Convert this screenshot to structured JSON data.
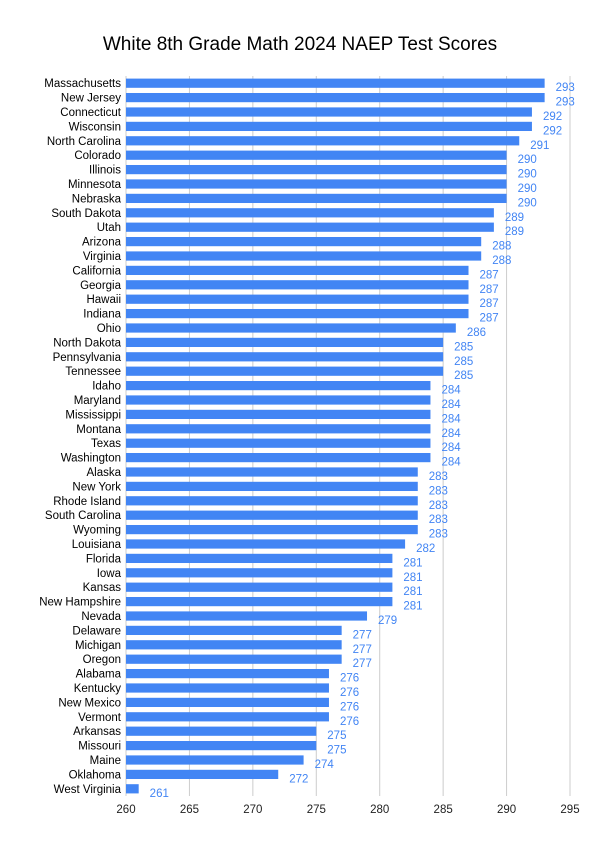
{
  "chart_data": {
    "type": "bar",
    "orientation": "horizontal",
    "title": "White 8th Grade Math 2024 NAEP Test Scores",
    "xlabel": "",
    "ylabel": "",
    "xlim": [
      260,
      295
    ],
    "xticks": [
      260,
      265,
      270,
      275,
      280,
      285,
      290,
      295
    ],
    "grid": "vertical",
    "legend": "none",
    "bar_color": "#4285f4",
    "label_color": "#4285f4",
    "grid_color": "#cccccc",
    "categories": [
      "Massachusetts",
      "New Jersey",
      "Connecticut",
      "Wisconsin",
      "North Carolina",
      "Colorado",
      "Illinois",
      "Minnesota",
      "Nebraska",
      "South Dakota",
      "Utah",
      "Arizona",
      "Virginia",
      "California",
      "Georgia",
      "Hawaii",
      "Indiana",
      "Ohio",
      "North Dakota",
      "Pennsylvania",
      "Tennessee",
      "Idaho",
      "Maryland",
      "Mississippi",
      "Montana",
      "Texas",
      "Washington",
      "Alaska",
      "New York",
      "Rhode Island",
      "South Carolina",
      "Wyoming",
      "Louisiana",
      "Florida",
      "Iowa",
      "Kansas",
      "New Hampshire",
      "Nevada",
      "Delaware",
      "Michigan",
      "Oregon",
      "Alabama",
      "Kentucky",
      "New Mexico",
      "Vermont",
      "Arkansas",
      "Missouri",
      "Maine",
      "Oklahoma",
      "West Virginia"
    ],
    "values": [
      293,
      293,
      292,
      292,
      291,
      290,
      290,
      290,
      290,
      289,
      289,
      288,
      288,
      287,
      287,
      287,
      287,
      286,
      285,
      285,
      285,
      284,
      284,
      284,
      284,
      284,
      284,
      283,
      283,
      283,
      283,
      283,
      282,
      281,
      281,
      281,
      281,
      279,
      277,
      277,
      277,
      276,
      276,
      276,
      276,
      275,
      275,
      274,
      272,
      261
    ]
  }
}
